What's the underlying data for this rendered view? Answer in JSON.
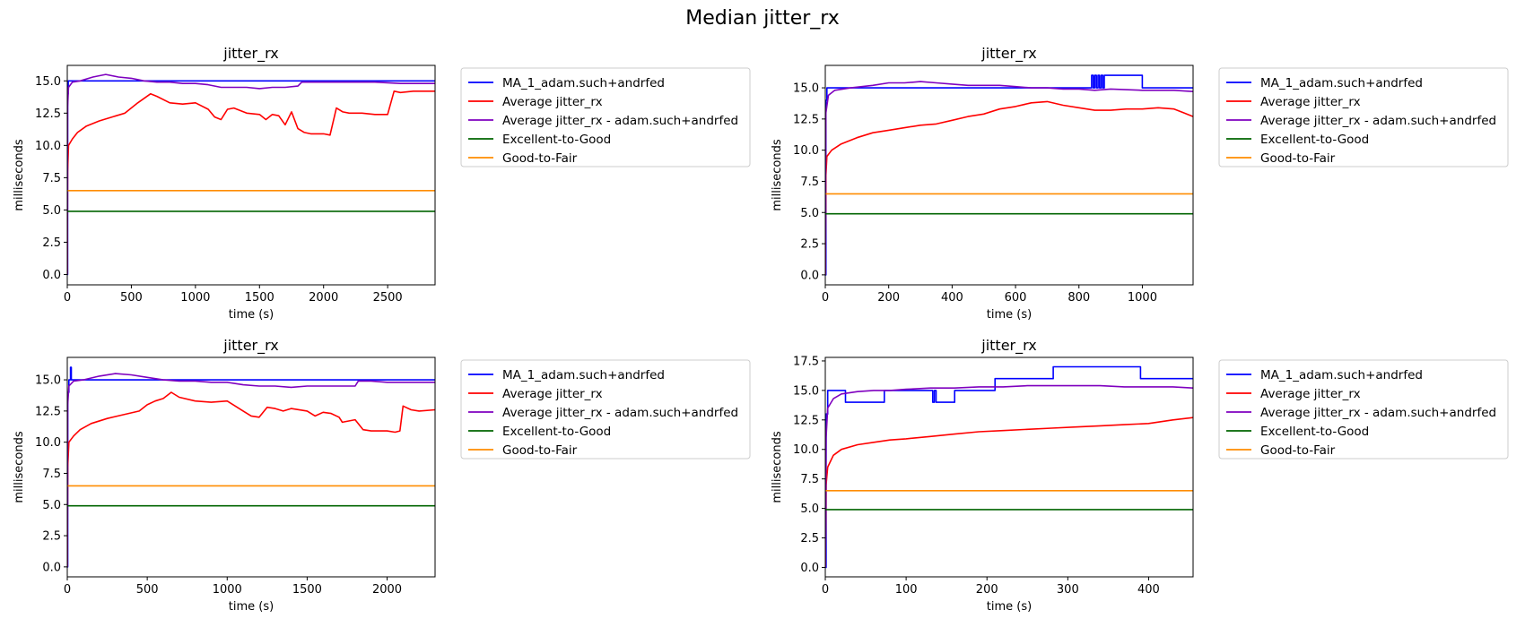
{
  "figure": {
    "suptitle": "Median jitter_rx",
    "colors": {
      "ma": "#0000ff",
      "avg": "#ff0000",
      "avg_user": "#7f00bf",
      "excellent": "#006400",
      "good": "#ff8c00"
    }
  },
  "chart_data": [
    {
      "type": "line",
      "title": "jitter_rx",
      "xlabel": "time (s)",
      "ylabel": "milliseconds",
      "xlim": [
        0,
        2870
      ],
      "ylim": [
        -0.8,
        16.2
      ],
      "xticks": [
        0,
        500,
        1000,
        1500,
        2000,
        2500
      ],
      "yticks": [
        0.0,
        2.5,
        5.0,
        7.5,
        10.0,
        12.5,
        15.0
      ],
      "ytick_labels": [
        "0.0",
        "2.5",
        "5.0",
        "7.5",
        "10.0",
        "12.5",
        "15.0"
      ],
      "legend_position": "outside-right",
      "series": [
        {
          "name": "MA_1_adam.such+andrfed",
          "step": true,
          "x": [
            0,
            3,
            8,
            2870
          ],
          "y": [
            0,
            14,
            15,
            15
          ]
        },
        {
          "name": "Average jitter_rx",
          "x": [
            0,
            3,
            10,
            40,
            80,
            150,
            250,
            350,
            450,
            550,
            650,
            700,
            800,
            900,
            1000,
            1100,
            1150,
            1200,
            1250,
            1300,
            1400,
            1500,
            1550,
            1600,
            1650,
            1700,
            1750,
            1800,
            1850,
            1900,
            2000,
            2050,
            2100,
            2150,
            2200,
            2300,
            2400,
            2500,
            2550,
            2600,
            2700,
            2870
          ],
          "y": [
            0,
            8,
            10,
            10.5,
            11.0,
            11.5,
            11.9,
            12.2,
            12.5,
            13.3,
            14.0,
            13.8,
            13.3,
            13.2,
            13.3,
            12.8,
            12.2,
            12.0,
            12.8,
            12.9,
            12.5,
            12.4,
            12.0,
            12.4,
            12.3,
            11.6,
            12.6,
            11.3,
            11.0,
            10.9,
            10.9,
            10.8,
            12.9,
            12.6,
            12.5,
            12.5,
            12.4,
            12.4,
            14.2,
            14.1,
            14.2,
            14.2
          ]
        },
        {
          "name": "Average jitter_rx - adam.such+andrfed",
          "x": [
            0,
            3,
            10,
            40,
            100,
            200,
            300,
            400,
            500,
            600,
            700,
            800,
            900,
            1000,
            1100,
            1200,
            1300,
            1400,
            1500,
            1600,
            1700,
            1800,
            1830,
            1900,
            2000,
            2200,
            2400,
            2600,
            2870
          ],
          "y": [
            0,
            13,
            14.5,
            14.9,
            15.0,
            15.3,
            15.5,
            15.3,
            15.2,
            15.0,
            14.9,
            14.9,
            14.8,
            14.8,
            14.7,
            14.5,
            14.5,
            14.5,
            14.4,
            14.5,
            14.5,
            14.6,
            14.9,
            14.9,
            14.9,
            14.9,
            14.9,
            14.8,
            14.8
          ]
        },
        {
          "name": "Excellent-to-Good",
          "x": [
            0,
            2870
          ],
          "y": [
            4.9,
            4.9
          ]
        },
        {
          "name": "Good-to-Fair",
          "x": [
            0,
            2870
          ],
          "y": [
            6.5,
            6.5
          ]
        }
      ]
    },
    {
      "type": "line",
      "title": "jitter_rx",
      "xlabel": "time (s)",
      "ylabel": "milliseconds",
      "xlim": [
        0,
        1160
      ],
      "ylim": [
        -0.8,
        16.8
      ],
      "xticks": [
        0,
        200,
        400,
        600,
        800,
        1000
      ],
      "yticks": [
        0.0,
        2.5,
        5.0,
        7.5,
        10.0,
        12.5,
        15.0
      ],
      "ytick_labels": [
        "0.0",
        "2.5",
        "5.0",
        "7.5",
        "10.0",
        "12.5",
        "15.0"
      ],
      "legend_position": "outside-right",
      "series": [
        {
          "name": "MA_1_adam.such+andrfed",
          "step": true,
          "x": [
            0,
            2,
            5,
            840,
            845,
            850,
            855,
            860,
            865,
            870,
            875,
            880,
            1000,
            1160
          ],
          "y": [
            0,
            14,
            15,
            16,
            15,
            16,
            15,
            16,
            15,
            16,
            15,
            16,
            15,
            15
          ]
        },
        {
          "name": "Average jitter_rx",
          "x": [
            0,
            2,
            5,
            20,
            50,
            100,
            150,
            200,
            250,
            300,
            350,
            400,
            450,
            500,
            550,
            600,
            650,
            700,
            750,
            800,
            850,
            900,
            950,
            1000,
            1050,
            1100,
            1130,
            1160
          ],
          "y": [
            0,
            8,
            9.5,
            10.0,
            10.5,
            11.0,
            11.4,
            11.6,
            11.8,
            12.0,
            12.1,
            12.4,
            12.7,
            12.9,
            13.3,
            13.5,
            13.8,
            13.9,
            13.6,
            13.4,
            13.2,
            13.2,
            13.3,
            13.3,
            13.4,
            13.3,
            13.0,
            12.7
          ]
        },
        {
          "name": "Average jitter_rx - adam.such+andrfed",
          "x": [
            0,
            2,
            10,
            30,
            80,
            150,
            200,
            250,
            300,
            350,
            400,
            450,
            500,
            550,
            600,
            650,
            700,
            750,
            800,
            850,
            900,
            1000,
            1100,
            1160
          ],
          "y": [
            0,
            13,
            14.4,
            14.8,
            15.0,
            15.2,
            15.4,
            15.4,
            15.5,
            15.4,
            15.3,
            15.2,
            15.2,
            15.2,
            15.1,
            15.0,
            15.0,
            14.9,
            14.9,
            14.8,
            14.9,
            14.8,
            14.8,
            14.7
          ]
        },
        {
          "name": "Excellent-to-Good",
          "x": [
            0,
            1160
          ],
          "y": [
            4.9,
            4.9
          ]
        },
        {
          "name": "Good-to-Fair",
          "x": [
            0,
            1160
          ],
          "y": [
            6.5,
            6.5
          ]
        }
      ]
    },
    {
      "type": "line",
      "title": "jitter_rx",
      "xlabel": "time (s)",
      "ylabel": "milliseconds",
      "xlim": [
        0,
        2300
      ],
      "ylim": [
        -0.8,
        16.8
      ],
      "xticks": [
        0,
        500,
        1000,
        1500,
        2000
      ],
      "yticks": [
        0.0,
        2.5,
        5.0,
        7.5,
        10.0,
        12.5,
        15.0
      ],
      "ytick_labels": [
        "0.0",
        "2.5",
        "5.0",
        "7.5",
        "10.0",
        "12.5",
        "15.0"
      ],
      "legend_position": "outside-right",
      "series": [
        {
          "name": "MA_1_adam.such+andrfed",
          "step": true,
          "x": [
            0,
            3,
            10,
            20,
            25,
            310,
            2300
          ],
          "y": [
            0,
            14,
            15,
            16,
            15,
            15,
            15
          ]
        },
        {
          "name": "Average jitter_rx",
          "x": [
            0,
            3,
            10,
            40,
            80,
            150,
            250,
            350,
            450,
            500,
            550,
            600,
            650,
            700,
            800,
            900,
            1000,
            1050,
            1100,
            1150,
            1200,
            1250,
            1300,
            1350,
            1400,
            1500,
            1550,
            1600,
            1650,
            1700,
            1720,
            1800,
            1850,
            1900,
            2000,
            2050,
            2080,
            2100,
            2150,
            2200,
            2300
          ],
          "y": [
            0,
            8,
            10,
            10.5,
            11.0,
            11.5,
            11.9,
            12.2,
            12.5,
            13.0,
            13.3,
            13.5,
            14.0,
            13.6,
            13.3,
            13.2,
            13.3,
            12.9,
            12.5,
            12.1,
            12.0,
            12.8,
            12.7,
            12.5,
            12.7,
            12.5,
            12.1,
            12.4,
            12.3,
            12.0,
            11.6,
            11.8,
            11.0,
            10.9,
            10.9,
            10.8,
            10.9,
            12.9,
            12.6,
            12.5,
            12.6
          ]
        },
        {
          "name": "Average jitter_rx - adam.such+andrfed",
          "x": [
            0,
            3,
            10,
            40,
            100,
            200,
            300,
            400,
            500,
            600,
            700,
            800,
            900,
            1000,
            1100,
            1200,
            1300,
            1400,
            1500,
            1600,
            1700,
            1800,
            1820,
            1900,
            2000,
            2100,
            2200,
            2300
          ],
          "y": [
            0,
            13,
            14.5,
            14.9,
            15.0,
            15.3,
            15.5,
            15.4,
            15.2,
            15.0,
            14.9,
            14.9,
            14.8,
            14.8,
            14.6,
            14.5,
            14.5,
            14.4,
            14.5,
            14.5,
            14.5,
            14.5,
            14.9,
            14.9,
            14.8,
            14.8,
            14.8,
            14.8
          ]
        },
        {
          "name": "Excellent-to-Good",
          "x": [
            0,
            2300
          ],
          "y": [
            4.9,
            4.9
          ]
        },
        {
          "name": "Good-to-Fair",
          "x": [
            0,
            2300
          ],
          "y": [
            6.5,
            6.5
          ]
        }
      ]
    },
    {
      "type": "line",
      "title": "jitter_rx",
      "xlabel": "time (s)",
      "ylabel": "milliseconds",
      "xlim": [
        0,
        455
      ],
      "ylim": [
        -0.8,
        17.8
      ],
      "xticks": [
        0,
        100,
        200,
        300,
        400
      ],
      "yticks": [
        0.0,
        2.5,
        5.0,
        7.5,
        10.0,
        12.5,
        15.0,
        17.5
      ],
      "ytick_labels": [
        "0.0",
        "2.5",
        "5.0",
        "7.5",
        "10.0",
        "12.5",
        "15.0",
        "17.5"
      ],
      "legend_position": "outside-right",
      "series": [
        {
          "name": "MA_1_adam.such+andrfed",
          "step": true,
          "x": [
            0,
            1,
            3,
            25,
            73,
            133,
            135,
            137,
            140,
            160,
            210,
            282,
            390,
            455
          ],
          "y": [
            0,
            13,
            15,
            14,
            15,
            14,
            15,
            14,
            14,
            15,
            16,
            17,
            16,
            16
          ]
        },
        {
          "name": "Average jitter_rx",
          "x": [
            0,
            1,
            3,
            10,
            20,
            40,
            60,
            80,
            100,
            130,
            160,
            190,
            220,
            250,
            280,
            310,
            340,
            370,
            400,
            430,
            455
          ],
          "y": [
            0,
            7,
            8.5,
            9.5,
            10.0,
            10.4,
            10.6,
            10.8,
            10.9,
            11.1,
            11.3,
            11.5,
            11.6,
            11.7,
            11.8,
            11.9,
            12.0,
            12.1,
            12.2,
            12.5,
            12.7
          ]
        },
        {
          "name": "Average jitter_rx - adam.such+andrfed",
          "x": [
            0,
            1,
            3,
            10,
            20,
            40,
            60,
            80,
            100,
            130,
            160,
            190,
            220,
            250,
            280,
            310,
            340,
            370,
            400,
            430,
            455
          ],
          "y": [
            0,
            11,
            13.5,
            14.3,
            14.7,
            14.9,
            15.0,
            15.0,
            15.1,
            15.2,
            15.2,
            15.3,
            15.3,
            15.4,
            15.4,
            15.4,
            15.4,
            15.3,
            15.3,
            15.3,
            15.2
          ]
        },
        {
          "name": "Excellent-to-Good",
          "x": [
            0,
            455
          ],
          "y": [
            4.9,
            4.9
          ]
        },
        {
          "name": "Good-to-Fair",
          "x": [
            0,
            455
          ],
          "y": [
            6.5,
            6.5
          ]
        }
      ]
    }
  ]
}
